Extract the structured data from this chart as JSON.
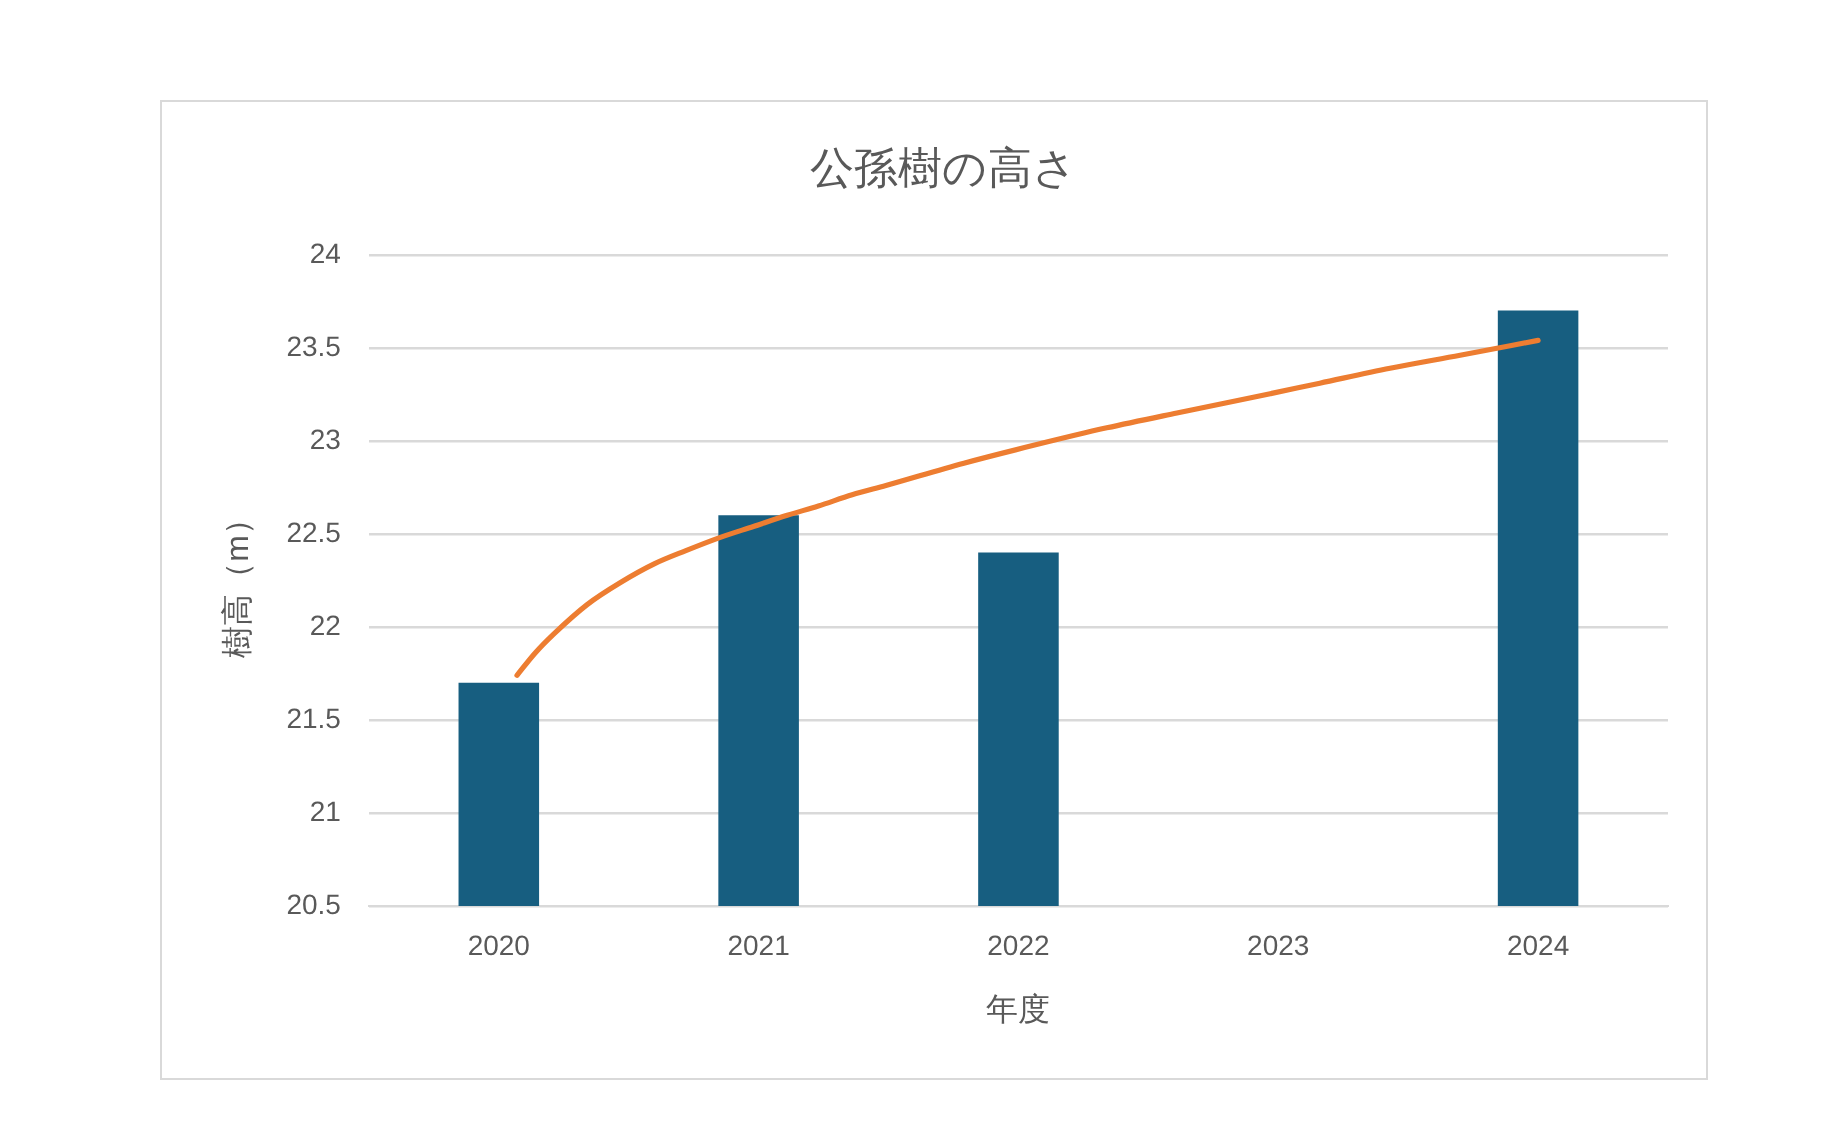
{
  "chart_data": {
    "type": "bar",
    "title": "公孫樹の高さ",
    "xlabel": "年度",
    "ylabel": "樹高（m）",
    "x": [
      2020,
      2021,
      2022,
      2023,
      2024
    ],
    "xlim": [
      2019.5,
      2024.5
    ],
    "xticks": [
      2020,
      2021,
      2022,
      2023,
      2024
    ],
    "ylim": [
      20.5,
      24
    ],
    "yticks": [
      20.5,
      21,
      21.5,
      22,
      22.5,
      23,
      23.5,
      24
    ],
    "grid": "y",
    "series": [
      {
        "color": "#175e80",
        "values": [
          21.7,
          22.6,
          22.4,
          null,
          23.7
        ]
      },
      {
        "type": "line",
        "color": "#ed7d31",
        "x": [
          2020.07,
          2020.14,
          2020.21,
          2020.34,
          2020.47,
          2020.6,
          2020.72,
          2020.85,
          2020.98,
          2021.11,
          2021.23,
          2021.36,
          2021.49,
          2021.79,
          2022.07,
          2022.34,
          2022.61,
          2022.89,
          2023.16,
          2023.43,
          2023.7,
          2024
        ],
        "values": [
          21.74,
          21.86,
          21.96,
          22.12,
          22.24,
          22.34,
          22.41,
          22.48,
          22.54,
          22.6,
          22.65,
          22.71,
          22.76,
          22.88,
          22.98,
          23.07,
          23.15,
          23.23,
          23.31,
          23.39,
          23.46,
          23.54
        ]
      }
    ]
  }
}
